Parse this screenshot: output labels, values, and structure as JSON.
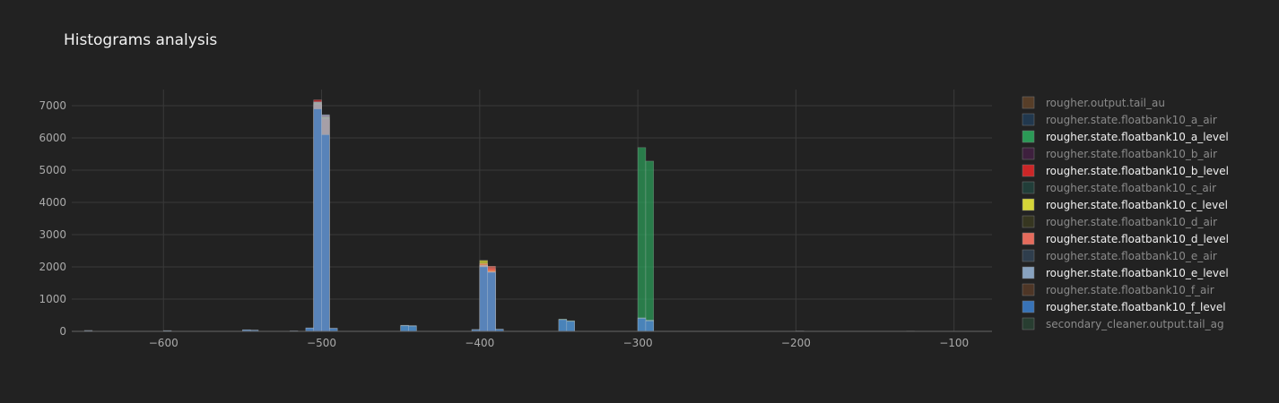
{
  "chart_data": {
    "type": "bar",
    "title": "Histograms analysis",
    "xlabel": "",
    "ylabel": "",
    "xlim": [
      -658,
      -76
    ],
    "ylim": [
      0,
      7500
    ],
    "x_ticks": [
      -600,
      -500,
      -400,
      -300,
      -200,
      -100
    ],
    "x_tick_labels": [
      "−600",
      "−500",
      "−400",
      "−300",
      "−200",
      "−100"
    ],
    "y_ticks": [
      0,
      1000,
      2000,
      3000,
      4000,
      5000,
      6000,
      7000
    ],
    "y_tick_labels": [
      "0",
      "1000",
      "2000",
      "3000",
      "4000",
      "5000",
      "6000",
      "7000"
    ],
    "bin_width": 5,
    "barmode": "overlay",
    "grid": true,
    "legend_position": "right",
    "series": [
      {
        "name": "rougher.output.tail_au",
        "color": "#8c5a2e",
        "visible": false,
        "bins": []
      },
      {
        "name": "rougher.state.floatbank10_a_air",
        "color": "#1f4e79",
        "visible": false,
        "bins": []
      },
      {
        "name": "rougher.state.floatbank10_a_level",
        "color": "#2ca05a",
        "visible": true,
        "bins": [
          [
            -505,
            7000
          ],
          [
            -500,
            6550
          ],
          [
            -400,
            1900
          ],
          [
            -395,
            1800
          ],
          [
            -350,
            380
          ],
          [
            -345,
            330
          ],
          [
            -300,
            5700
          ],
          [
            -295,
            5280
          ],
          [
            -450,
            180
          ],
          [
            -445,
            170
          ]
        ]
      },
      {
        "name": "rougher.state.floatbank10_b_air",
        "color": "#5a1e5a",
        "visible": false,
        "bins": []
      },
      {
        "name": "rougher.state.floatbank10_b_level",
        "color": "#d62728",
        "visible": true,
        "bins": [
          [
            -505,
            7180
          ],
          [
            -500,
            6700
          ],
          [
            -400,
            2050
          ],
          [
            -395,
            1950
          ]
        ]
      },
      {
        "name": "rougher.state.floatbank10_c_air",
        "color": "#1f5a50",
        "visible": false,
        "bins": []
      },
      {
        "name": "rougher.state.floatbank10_c_level",
        "color": "#dfdf3a",
        "visible": true,
        "bins": [
          [
            -505,
            7100
          ],
          [
            -500,
            6650
          ],
          [
            -400,
            2200
          ],
          [
            -395,
            1900
          ]
        ]
      },
      {
        "name": "rougher.state.floatbank10_d_air",
        "color": "#4a4a1e",
        "visible": false,
        "bins": []
      },
      {
        "name": "rougher.state.floatbank10_d_level",
        "color": "#f07060",
        "visible": true,
        "bins": [
          [
            -505,
            7050
          ],
          [
            -500,
            6600
          ],
          [
            -400,
            2100
          ],
          [
            -395,
            2020
          ]
        ]
      },
      {
        "name": "rougher.state.floatbank10_e_air",
        "color": "#3b5a78",
        "visible": false,
        "bins": []
      },
      {
        "name": "rougher.state.floatbank10_e_level",
        "color": "#8eaac8",
        "visible": true,
        "bins": [
          [
            -505,
            7120
          ],
          [
            -500,
            6720
          ],
          [
            -510,
            110
          ],
          [
            -495,
            100
          ],
          [
            -400,
            2050
          ],
          [
            -395,
            1850
          ],
          [
            -405,
            60
          ],
          [
            -390,
            70
          ],
          [
            -350,
            370
          ],
          [
            -345,
            320
          ],
          [
            -450,
            190
          ],
          [
            -445,
            180
          ],
          [
            -550,
            50
          ],
          [
            -545,
            40
          ],
          [
            -300,
            420
          ],
          [
            -295,
            350
          ],
          [
            -600,
            25
          ],
          [
            -650,
            30
          ]
        ]
      },
      {
        "name": "rougher.state.floatbank10_f_air",
        "color": "#7a4a2a",
        "visible": false,
        "bins": []
      },
      {
        "name": "rougher.state.floatbank10_f_level",
        "color": "#3a78c0",
        "visible": true,
        "bins": [
          [
            -505,
            6900
          ],
          [
            -500,
            6100
          ],
          [
            -510,
            100
          ],
          [
            -495,
            90
          ],
          [
            -400,
            2000
          ],
          [
            -395,
            1830
          ],
          [
            -405,
            50
          ],
          [
            -390,
            60
          ],
          [
            -350,
            360
          ],
          [
            -345,
            310
          ],
          [
            -450,
            170
          ],
          [
            -445,
            160
          ],
          [
            -300,
            400
          ],
          [
            -295,
            320
          ],
          [
            -550,
            45
          ],
          [
            -545,
            35
          ],
          [
            -600,
            20
          ],
          [
            -520,
            20
          ],
          [
            -200,
            15
          ],
          [
            -130,
            10
          ]
        ]
      },
      {
        "name": "secondary_cleaner.output.tail_ag",
        "color": "#2e5a40",
        "visible": false,
        "bins": []
      }
    ]
  }
}
